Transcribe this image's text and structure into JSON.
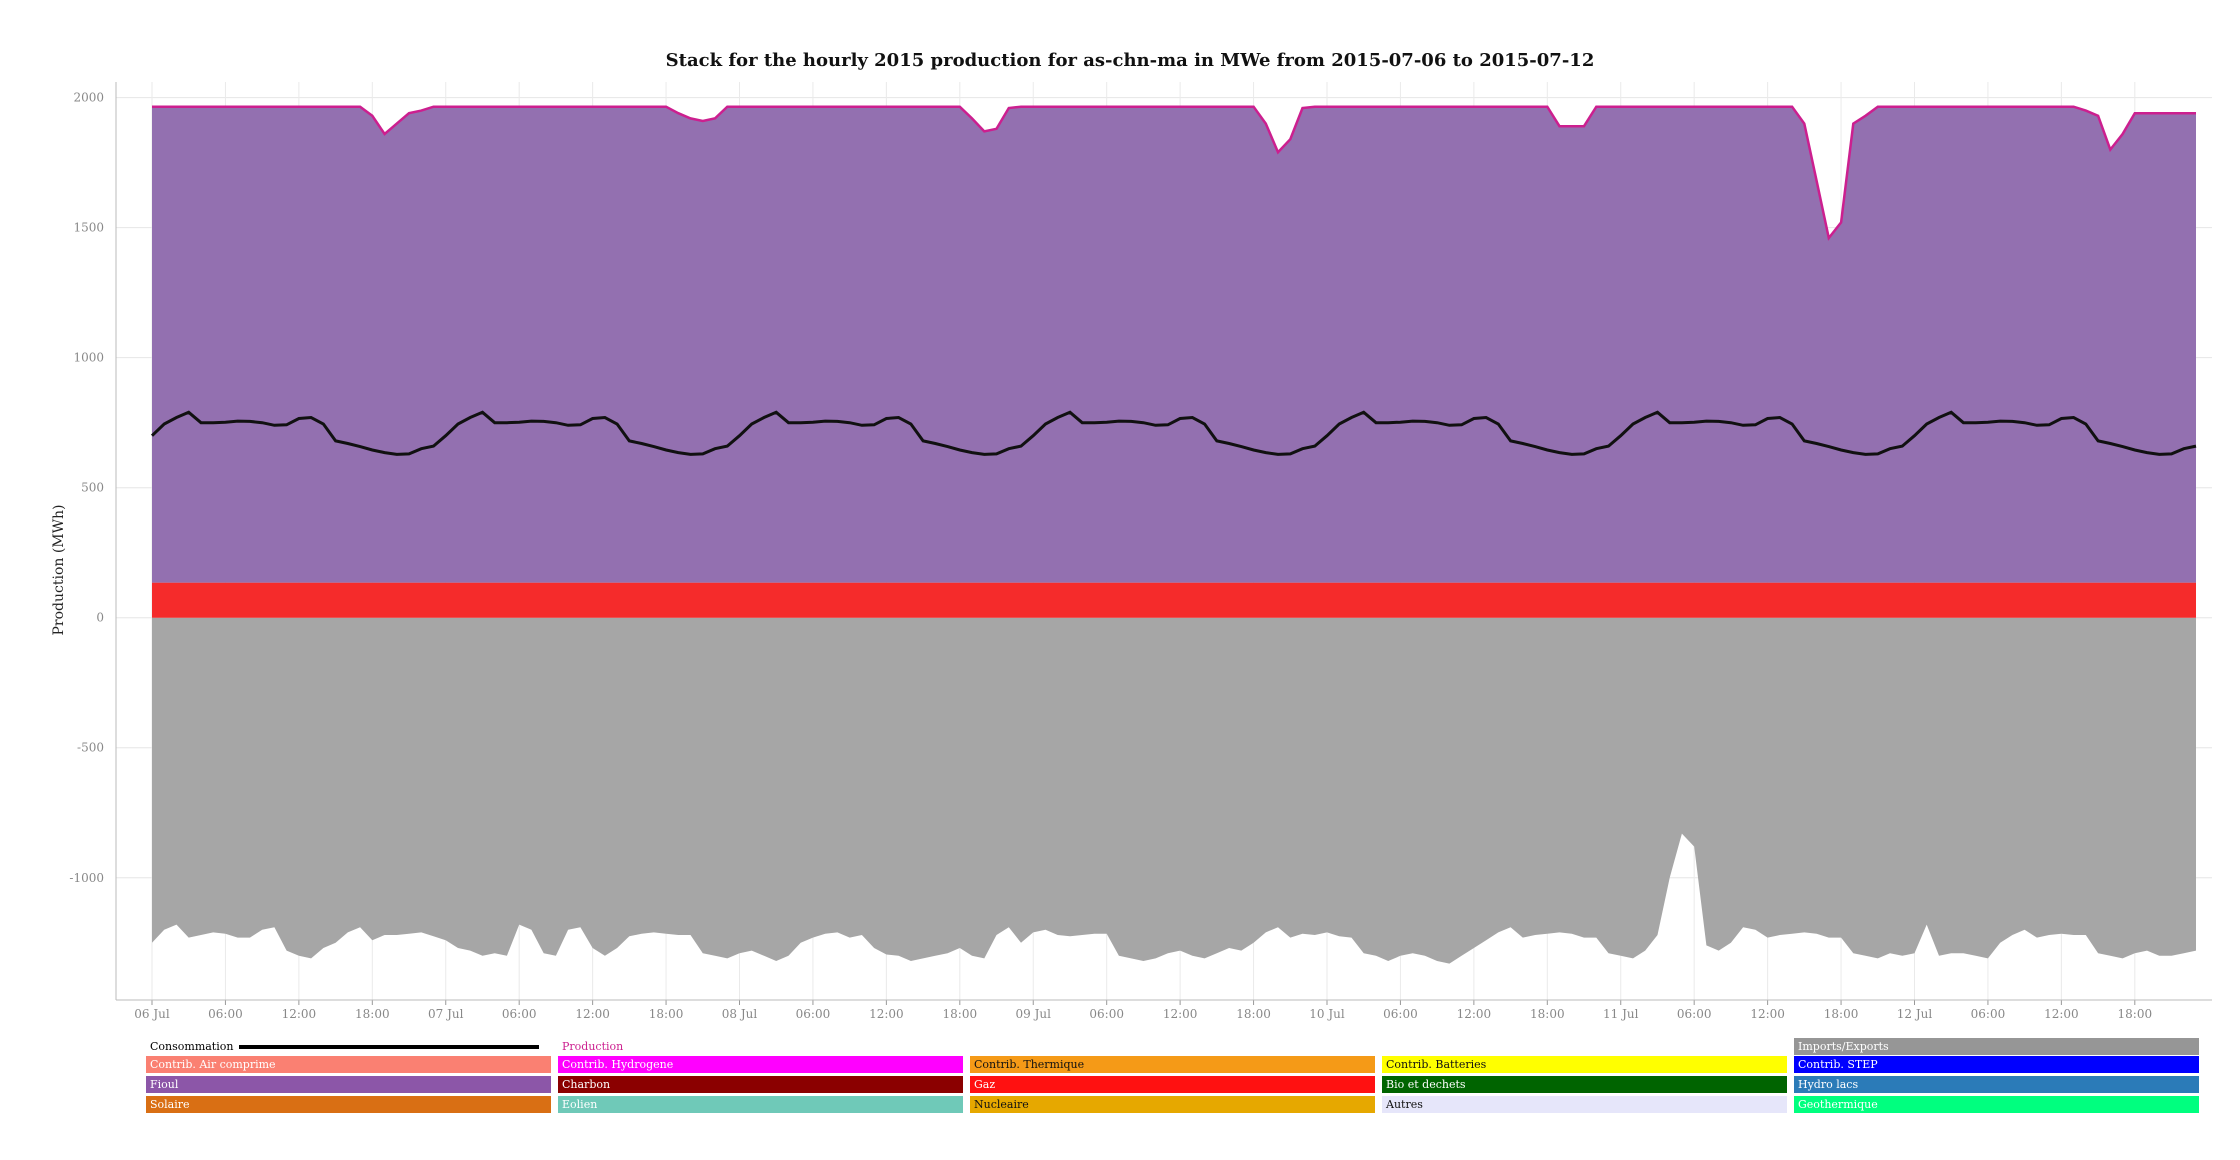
{
  "chart_data": {
    "type": "area",
    "title": "Stack for the hourly 2015 production for as-chn-ma in MWe from 2015-07-06 to 2015-07-12",
    "ylabel": "Production (MWh)",
    "xlabel": "",
    "ylim": [
      -1470,
      2060
    ],
    "y_ticks": [
      2000,
      1500,
      1000,
      500,
      0,
      -500,
      -1000
    ],
    "x_ticks": [
      "06 Jul",
      "06:00",
      "12:00",
      "18:00",
      "07 Jul",
      "06:00",
      "12:00",
      "18:00",
      "08 Jul",
      "06:00",
      "12:00",
      "18:00",
      "09 Jul",
      "06:00",
      "12:00",
      "18:00",
      "10 Jul",
      "06:00",
      "12:00",
      "18:00",
      "11 Jul",
      "06:00",
      "12:00",
      "18:00",
      "12 Jul",
      "06:00",
      "12:00",
      "18:00"
    ],
    "x_start": "2015-07-06 00:00",
    "x_end": "2015-07-12 23:00",
    "hours": 168,
    "grid": true,
    "legend_placement": "bottom",
    "colors": {
      "Gaz": "#f52b2b",
      "Fioul": "#9370b0",
      "Imports/Exports": "#a6a6a6",
      "Production": "#cc1f8f",
      "Consommation": "#111111"
    },
    "series": [
      {
        "name": "Imports/Exports",
        "stacked": false,
        "profile": [
          -1250,
          -1200,
          -1180,
          -1230,
          -1220,
          -1210,
          -1215,
          -1230,
          -1230,
          -1200,
          -1190,
          -1280,
          -1300,
          -1310,
          -1270,
          -1250,
          -1210,
          -1190,
          -1240,
          -1220,
          -1220,
          -1215,
          -1210,
          -1225,
          -1240,
          -1270,
          -1280,
          -1300,
          -1290,
          -1300,
          -1180,
          -1200,
          -1290,
          -1300,
          -1200,
          -1190,
          -1270,
          -1300,
          -1270,
          -1225,
          -1215,
          -1210,
          -1215,
          -1220,
          -1220,
          -1290,
          -1300,
          -1310,
          -1290,
          -1280,
          -1300,
          -1320,
          -1300,
          -1250,
          -1230,
          -1215,
          -1210,
          -1230,
          -1220,
          -1270,
          -1295,
          -1300,
          -1320,
          -1310,
          -1300,
          -1290,
          -1270,
          -1300,
          -1310,
          -1220,
          -1190,
          -1250,
          -1210,
          -1200,
          -1220,
          -1225,
          -1220,
          -1215,
          -1215,
          -1300,
          -1310,
          -1320,
          -1310,
          -1290,
          -1280,
          -1300,
          -1310,
          -1290,
          -1270,
          -1280,
          -1250,
          -1210,
          -1190,
          -1230,
          -1215,
          -1220,
          -1210,
          -1225,
          -1230,
          -1290,
          -1300,
          -1320,
          -1300,
          -1290,
          -1300,
          -1320,
          -1330,
          -1300,
          -1270,
          -1240,
          -1210,
          -1190,
          -1230,
          -1220,
          -1215,
          -1210,
          -1215,
          -1230,
          -1230,
          -1290,
          -1300,
          -1310,
          -1280,
          -1220,
          -1000,
          -830,
          -880,
          -1260,
          -1280,
          -1250,
          -1190,
          -1200,
          -1230,
          -1220,
          -1215,
          -1210,
          -1215,
          -1230,
          -1230,
          -1290,
          -1300,
          -1310,
          -1290,
          -1300,
          -1290,
          -1180,
          -1300,
          -1290,
          -1290,
          -1300,
          -1310,
          -1250,
          -1220,
          -1200,
          -1230,
          -1220,
          -1215,
          -1220,
          -1220,
          -1290,
          -1300,
          -1310,
          -1290,
          -1280,
          -1300,
          -1300,
          -1290,
          -1280
        ]
      },
      {
        "name": "Gaz",
        "stacked": true,
        "constant": 135
      },
      {
        "name": "Fioul",
        "stacked": true,
        "derived": "Production - Gaz"
      },
      {
        "name": "Production",
        "type": "line",
        "profile": [
          1965,
          1965,
          1965,
          1965,
          1965,
          1965,
          1965,
          1965,
          1965,
          1965,
          1965,
          1965,
          1965,
          1965,
          1965,
          1965,
          1965,
          1965,
          1930,
          1860,
          1900,
          1940,
          1950,
          1965,
          1965,
          1965,
          1965,
          1965,
          1965,
          1965,
          1965,
          1965,
          1965,
          1965,
          1965,
          1965,
          1965,
          1965,
          1965,
          1965,
          1965,
          1965,
          1965,
          1940,
          1920,
          1910,
          1920,
          1965,
          1965,
          1965,
          1965,
          1965,
          1965,
          1965,
          1965,
          1965,
          1965,
          1965,
          1965,
          1965,
          1965,
          1965,
          1965,
          1965,
          1965,
          1965,
          1965,
          1920,
          1870,
          1880,
          1960,
          1965,
          1965,
          1965,
          1965,
          1965,
          1965,
          1965,
          1965,
          1965,
          1965,
          1965,
          1965,
          1965,
          1965,
          1965,
          1965,
          1965,
          1965,
          1965,
          1965,
          1900,
          1790,
          1840,
          1960,
          1965,
          1965,
          1965,
          1965,
          1965,
          1965,
          1965,
          1965,
          1965,
          1965,
          1965,
          1965,
          1965,
          1965,
          1965,
          1965,
          1965,
          1965,
          1965,
          1965,
          1890,
          1890,
          1890,
          1965,
          1965,
          1965,
          1965,
          1965,
          1965,
          1965,
          1965,
          1965,
          1965,
          1965,
          1965,
          1965,
          1965,
          1965,
          1965,
          1965,
          1900,
          1680,
          1460,
          1520,
          1900,
          1930,
          1965,
          1965,
          1965,
          1965,
          1965,
          1965,
          1965,
          1965,
          1965,
          1965,
          1965,
          1965,
          1965,
          1965,
          1965,
          1965,
          1965,
          1950,
          1930,
          1800,
          1860,
          1940,
          1940,
          1940,
          1940,
          1940,
          1940
        ]
      },
      {
        "name": "Consommation",
        "type": "line",
        "daily_profile": [
          700,
          745,
          770,
          790,
          750,
          750,
          752,
          756,
          755,
          750,
          740,
          742,
          766,
          770,
          745,
          680,
          670,
          658,
          645,
          635,
          628,
          630,
          650,
          660
        ]
      }
    ],
    "legend": [
      [
        "Consommation",
        "Production",
        "",
        "",
        "Imports/Exports"
      ],
      [
        "Contrib. Air comprime",
        "Contrib. Hydrogene",
        "Contrib. Thermique",
        "Contrib. Batteries",
        "Contrib. STEP"
      ],
      [
        "Fioul",
        "Charbon",
        "Gaz",
        "Bio et dechets",
        "Hydro lacs"
      ],
      [
        "Solaire",
        "Eolien",
        "Nucleaire",
        "Autres",
        "Geothermique"
      ]
    ],
    "legend_colors": {
      "Consommation": "#000000",
      "Production": "#cc1f8f",
      "Imports/Exports": "#969696",
      "Contrib. Air comprime": "#fa8072",
      "Contrib. Hydrogene": "#ff00ff",
      "Contrib. Thermique": "#f59a17",
      "Contrib. Batteries": "#ffff00",
      "Contrib. STEP": "#0000ff",
      "Fioul": "#8c56a8",
      "Charbon": "#8b0000",
      "Gaz": "#ff1111",
      "Bio et dechets": "#006400",
      "Hydro lacs": "#2b7bb8",
      "Solaire": "#d96f14",
      "Eolien": "#6fc9b8",
      "Nucleaire": "#e6a800",
      "Autres": "#e6e6fa",
      "Geothermique": "#00ff7f"
    }
  }
}
